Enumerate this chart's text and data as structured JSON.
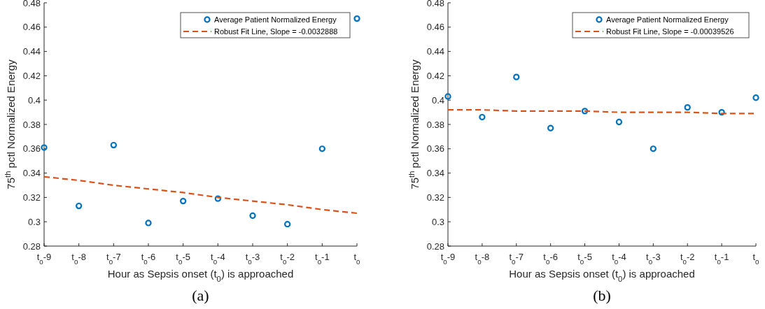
{
  "chart_data": [
    {
      "type": "scatter",
      "xlabel": "Hour as Sepsis onset (t$_{0}$) is approached",
      "ylabel": "75$^{th}$ pctl Normalized Energy",
      "annotations": [
        "(a)"
      ],
      "categories": [
        "t$_{0}$-9",
        "t$_{0}$-8",
        "t$_{0}$-7",
        "t$_{0}$-6",
        "t$_{0}$-5",
        "t$_{0}$-4",
        "t$_{0}$-3",
        "t$_{0}$-2",
        "t$_{0}$-1",
        "t$_{0}$"
      ],
      "ylim": [
        0.28,
        0.48
      ],
      "yticks": [
        0.28,
        0.3,
        0.32,
        0.34,
        0.36,
        0.38,
        0.4,
        0.42,
        0.44,
        0.46,
        0.48
      ],
      "grid": false,
      "legend": "top right",
      "series": [
        {
          "name": "Average Patient Normalized Energy",
          "color": "#0072bd",
          "marker": "circle",
          "values": [
            0.361,
            0.313,
            0.363,
            0.299,
            0.317,
            0.319,
            0.305,
            0.298,
            0.36,
            0.467
          ]
        },
        {
          "name": "Robust Fit Line, Slope = -0.0032888",
          "type": "line",
          "color": "#d95319",
          "line_style": "dashed",
          "values": [
            0.337,
            0.334,
            0.33,
            0.327,
            0.324,
            0.32,
            0.317,
            0.314,
            0.31,
            0.307
          ]
        }
      ]
    },
    {
      "type": "scatter",
      "xlabel": "Hour as Sepsis onset (t$_{0}$) is approached",
      "ylabel": "75$^{th}$ pctl Normalized Energy",
      "annotations": [
        "(b)"
      ],
      "categories": [
        "t$_{0}$-9",
        "t$_{0}$-8",
        "t$_{0}$-7",
        "t$_{0}$-6",
        "t$_{0}$-5",
        "t$_{0}$-4",
        "t$_{0}$-3",
        "t$_{0}$-2",
        "t$_{0}$-1",
        "t$_{0}$"
      ],
      "ylim": [
        0.28,
        0.48
      ],
      "yticks": [
        0.28,
        0.3,
        0.32,
        0.34,
        0.36,
        0.38,
        0.4,
        0.42,
        0.44,
        0.46,
        0.48
      ],
      "grid": false,
      "legend": "top right",
      "series": [
        {
          "name": "Average Patient Normalized Energy",
          "color": "#0072bd",
          "marker": "circle",
          "values": [
            0.403,
            0.386,
            0.419,
            0.377,
            0.391,
            0.382,
            0.36,
            0.394,
            0.39,
            0.402
          ]
        },
        {
          "name": "Robust Fit Line, Slope = -0.00039526",
          "type": "line",
          "color": "#d95319",
          "line_style": "dashed",
          "values": [
            0.392,
            0.392,
            0.391,
            0.391,
            0.391,
            0.39,
            0.39,
            0.39,
            0.389,
            0.389
          ]
        }
      ]
    }
  ]
}
